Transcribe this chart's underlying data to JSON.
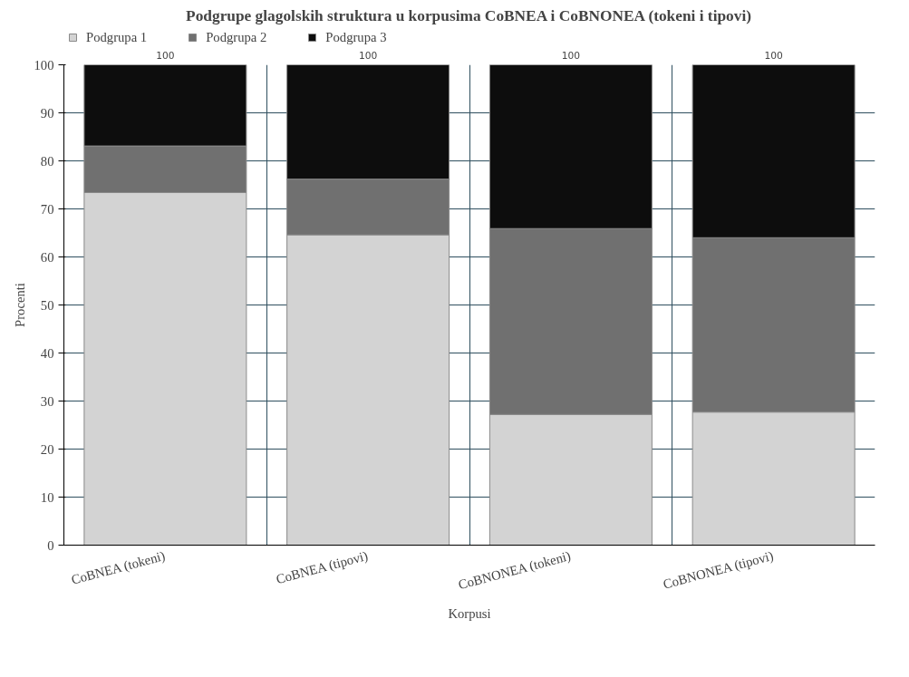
{
  "chart_data": {
    "type": "bar",
    "stacked": true,
    "title": "Podgrupe glagolskih struktura u korpusima CoBNEA i CoBNONEA (tokeni i tipovi)",
    "xlabel": "Korpusi",
    "ylabel": "Procenti",
    "categories": [
      "CoBNEA (tokeni)",
      "CoBNEA (tipovi)",
      "CoBNONEA (tokeni)",
      "CoBNONEA (tipovi)"
    ],
    "series": [
      {
        "name": "Podgrupa 1",
        "color": "#d3d3d3",
        "values": [
          73.4,
          64.6,
          27.2,
          27.7
        ]
      },
      {
        "name": "Podgrupa 2",
        "color": "#707070",
        "values": [
          9.7,
          11.6,
          38.7,
          36.3
        ]
      },
      {
        "name": "Podgrupa 3",
        "color": "#0d0d0d",
        "values": [
          16.9,
          23.8,
          34.1,
          36.0
        ]
      }
    ],
    "totals": [
      "100",
      "100",
      "100",
      "100"
    ],
    "ylim": [
      0,
      100
    ],
    "yticks": [
      0,
      10,
      20,
      30,
      40,
      50,
      60,
      70,
      80,
      90,
      100
    ],
    "grid": true,
    "legend": "top left"
  }
}
